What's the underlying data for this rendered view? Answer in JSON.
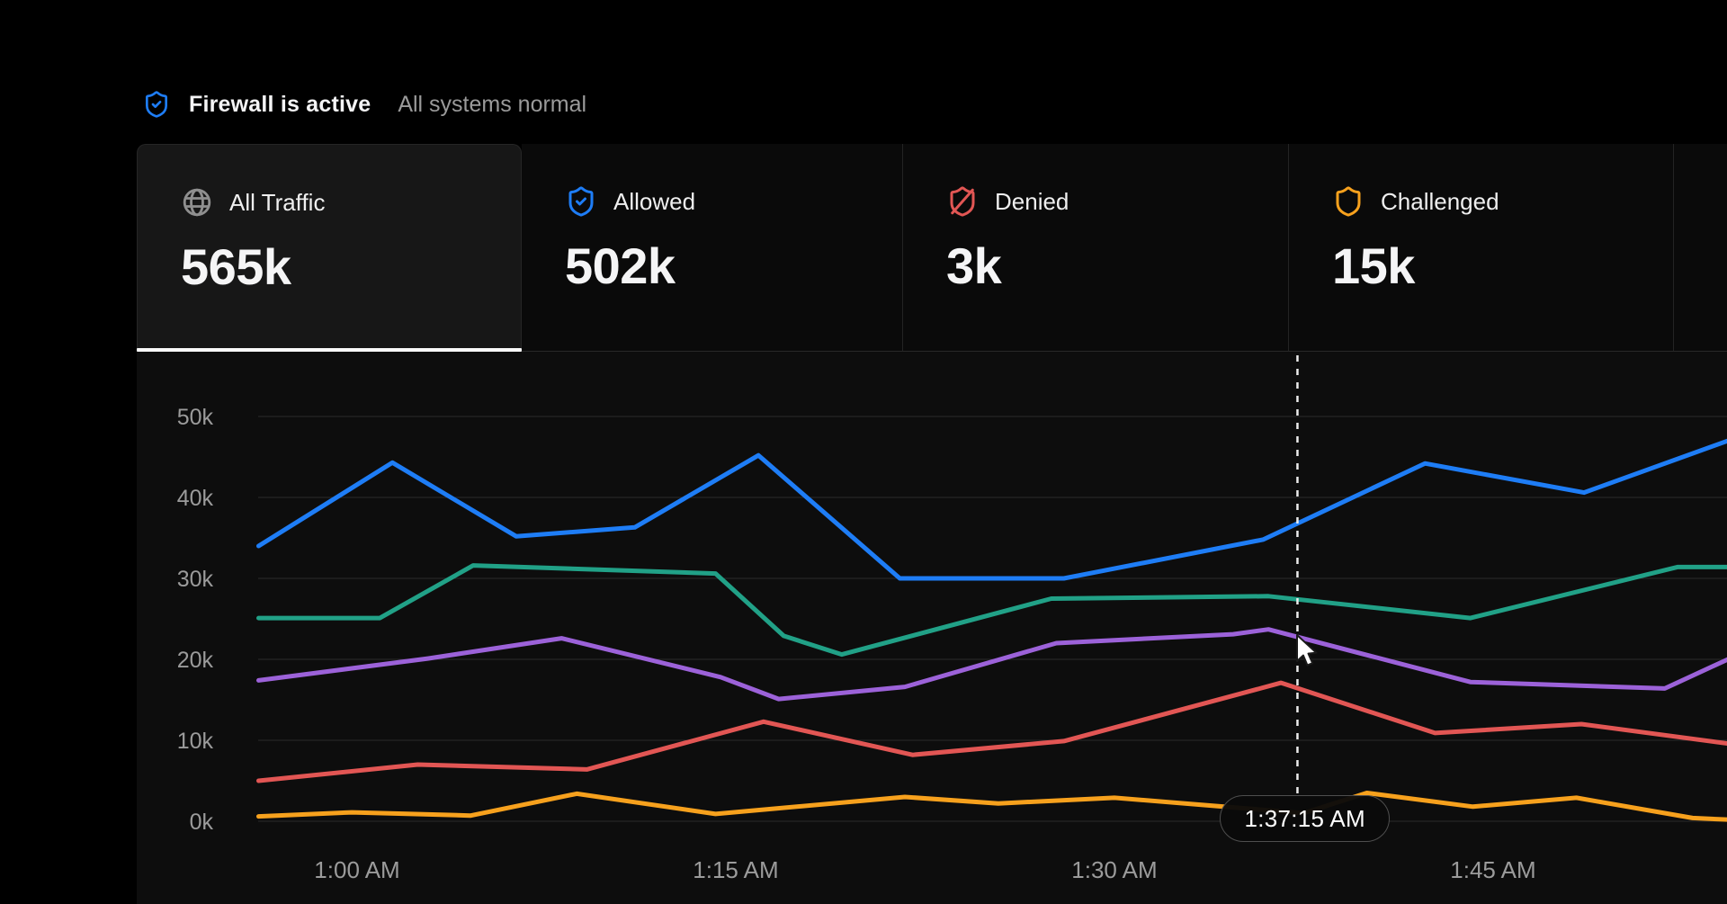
{
  "header": {
    "title": "Firewall is active",
    "subtitle": "All systems normal"
  },
  "tabs": [
    {
      "id": "all-traffic",
      "icon": "globe-icon",
      "icon_color": "#8f8f8f",
      "label": "All Traffic",
      "value": "565k",
      "active": true
    },
    {
      "id": "allowed",
      "icon": "shield-check-icon",
      "icon_color": "#1e7df6",
      "label": "Allowed",
      "value": "502k",
      "active": false
    },
    {
      "id": "denied",
      "icon": "shield-slash-icon",
      "icon_color": "#e25654",
      "label": "Denied",
      "value": "3k",
      "active": false
    },
    {
      "id": "challenged",
      "icon": "shield-icon",
      "icon_color": "#f7a11d",
      "label": "Challenged",
      "value": "15k",
      "active": false
    }
  ],
  "chart_data": {
    "type": "line",
    "title": "",
    "xlabel": "",
    "ylabel": "",
    "x_unit": "minutes relative to 1:00 AM",
    "value_unit": "thousands of requests",
    "grid": true,
    "legend": false,
    "x_range_minutes": [
      -3.9,
      54.3
    ],
    "ylim_thousands": [
      0,
      50
    ],
    "x_ticks": [
      {
        "minutes": 0,
        "label": "1:00 AM"
      },
      {
        "minutes": 15,
        "label": "1:15 AM"
      },
      {
        "minutes": 30,
        "label": "1:30 AM"
      },
      {
        "minutes": 45,
        "label": "1:45 AM"
      }
    ],
    "y_ticks": [
      {
        "value": 0,
        "label": "0k"
      },
      {
        "value": 10,
        "label": "10k"
      },
      {
        "value": 20,
        "label": "20k"
      },
      {
        "value": 30,
        "label": "30k"
      },
      {
        "value": 40,
        "label": "40k"
      },
      {
        "value": 50,
        "label": "50k"
      }
    ],
    "cursor": {
      "minutes": 37.25,
      "label": "1:37:15 AM"
    },
    "series": [
      {
        "name": "teal",
        "color": "#21a187",
        "points": [
          [
            -3.9,
            25.1
          ],
          [
            0.9,
            25.1
          ],
          [
            4.6,
            31.6
          ],
          [
            14.2,
            30.6
          ],
          [
            16.9,
            22.9
          ],
          [
            19.2,
            20.6
          ],
          [
            27.5,
            27.5
          ],
          [
            36.1,
            27.8
          ],
          [
            44.1,
            25.1
          ],
          [
            52.3,
            31.4
          ],
          [
            54.3,
            31.4
          ]
        ]
      },
      {
        "name": "purple",
        "color": "#9c62d9",
        "points": [
          [
            -3.9,
            17.4
          ],
          [
            2.8,
            20.1
          ],
          [
            8.1,
            22.6
          ],
          [
            14.4,
            17.8
          ],
          [
            16.7,
            15.1
          ],
          [
            21.7,
            16.6
          ],
          [
            27.7,
            22.0
          ],
          [
            34.7,
            23.1
          ],
          [
            36.1,
            23.7
          ],
          [
            44.1,
            17.2
          ],
          [
            51.8,
            16.4
          ],
          [
            54.3,
            20.0
          ]
        ]
      },
      {
        "name": "red",
        "color": "#e25654",
        "points": [
          [
            -3.9,
            5.0
          ],
          [
            2.4,
            7.0
          ],
          [
            9.1,
            6.4
          ],
          [
            16.1,
            12.3
          ],
          [
            22.0,
            8.2
          ],
          [
            28.0,
            9.9
          ],
          [
            36.6,
            17.1
          ],
          [
            42.7,
            10.9
          ],
          [
            48.5,
            12.0
          ],
          [
            54.3,
            9.6
          ]
        ]
      },
      {
        "name": "orange",
        "color": "#f7a11d",
        "points": [
          [
            -3.9,
            0.6
          ],
          [
            -0.2,
            1.1
          ],
          [
            4.5,
            0.7
          ],
          [
            8.7,
            3.4
          ],
          [
            14.2,
            0.9
          ],
          [
            21.7,
            3.0
          ],
          [
            25.4,
            2.2
          ],
          [
            30.0,
            2.9
          ],
          [
            37.5,
            1.0
          ],
          [
            40.0,
            3.5
          ],
          [
            44.2,
            1.8
          ],
          [
            48.3,
            2.9
          ],
          [
            52.9,
            0.4
          ],
          [
            54.3,
            0.2
          ]
        ]
      },
      {
        "name": "blue",
        "color": "#1e7df6",
        "points": [
          [
            -3.9,
            34.0
          ],
          [
            1.4,
            44.3
          ],
          [
            6.3,
            35.2
          ],
          [
            11.0,
            36.3
          ],
          [
            15.9,
            45.2
          ],
          [
            21.5,
            30.0
          ],
          [
            28.0,
            30.0
          ],
          [
            35.9,
            34.8
          ],
          [
            42.3,
            44.2
          ],
          [
            48.6,
            40.6
          ],
          [
            54.3,
            47.0
          ]
        ]
      }
    ]
  }
}
